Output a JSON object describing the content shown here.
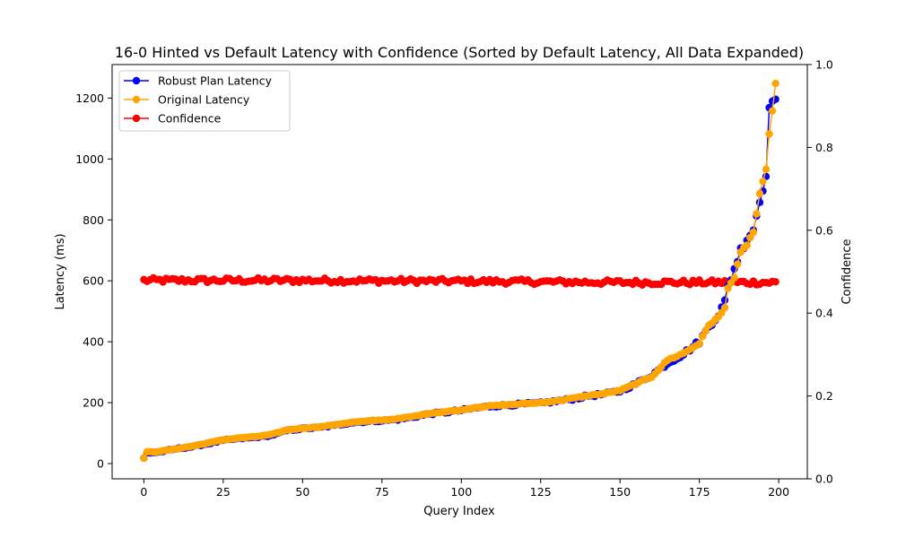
{
  "chart_data": {
    "type": "line",
    "title": "16-0 Hinted vs Default Latency with Confidence (Sorted by Default Latency, All Data Expanded)",
    "xlabel": "Query Index",
    "ylabel": "Latency (ms)",
    "y2label": "Confidence",
    "xlim": [
      -10,
      209
    ],
    "ylim": [
      -50,
      1310
    ],
    "y2lim": [
      0.0,
      1.0
    ],
    "x_ticks": [
      0,
      25,
      50,
      75,
      100,
      125,
      150,
      175,
      200
    ],
    "y_ticks": [
      0,
      200,
      400,
      600,
      800,
      1000,
      1200
    ],
    "y2_ticks": [
      "0.0",
      "0.2",
      "0.4",
      "0.6",
      "0.8",
      "1.0"
    ],
    "grid": false,
    "legend_position": "top-left",
    "count": 200,
    "series": [
      {
        "name": "Robust Plan Latency",
        "axis": "left",
        "color": "#0000ff",
        "knots": [
          [
            0,
            18
          ],
          [
            1,
            35
          ],
          [
            5,
            38
          ],
          [
            10,
            48
          ],
          [
            15,
            55
          ],
          [
            20,
            65
          ],
          [
            25,
            76
          ],
          [
            30,
            82
          ],
          [
            35,
            86
          ],
          [
            40,
            92
          ],
          [
            45,
            108
          ],
          [
            50,
            115
          ],
          [
            55,
            118
          ],
          [
            60,
            125
          ],
          [
            65,
            134
          ],
          [
            70,
            138
          ],
          [
            75,
            141
          ],
          [
            80,
            145
          ],
          [
            85,
            153
          ],
          [
            90,
            163
          ],
          [
            95,
            168
          ],
          [
            100,
            175
          ],
          [
            105,
            183
          ],
          [
            110,
            189
          ],
          [
            115,
            192
          ],
          [
            120,
            196
          ],
          [
            125,
            198
          ],
          [
            130,
            205
          ],
          [
            135,
            212
          ],
          [
            140,
            222
          ],
          [
            145,
            228
          ],
          [
            150,
            238
          ],
          [
            155,
            262
          ],
          [
            160,
            290
          ],
          [
            165,
            330
          ],
          [
            170,
            360
          ],
          [
            175,
            400
          ],
          [
            178,
            450
          ],
          [
            181,
            490
          ],
          [
            183,
            530
          ],
          [
            184,
            580
          ],
          [
            186,
            640
          ],
          [
            188,
            700
          ],
          [
            190,
            740
          ],
          [
            192,
            770
          ],
          [
            194,
            860
          ],
          [
            196,
            960
          ],
          [
            197,
            1150
          ],
          [
            198,
            1210
          ],
          [
            199,
            1195
          ]
        ]
      },
      {
        "name": "Original Latency",
        "axis": "left",
        "color": "#ffa500",
        "knots": [
          [
            0,
            18
          ],
          [
            1,
            38
          ],
          [
            5,
            40
          ],
          [
            10,
            48
          ],
          [
            15,
            57
          ],
          [
            20,
            67
          ],
          [
            25,
            78
          ],
          [
            30,
            84
          ],
          [
            35,
            88
          ],
          [
            40,
            95
          ],
          [
            45,
            110
          ],
          [
            50,
            116
          ],
          [
            55,
            120
          ],
          [
            60,
            127
          ],
          [
            65,
            135
          ],
          [
            70,
            139
          ],
          [
            75,
            143
          ],
          [
            80,
            147
          ],
          [
            85,
            155
          ],
          [
            90,
            165
          ],
          [
            95,
            170
          ],
          [
            100,
            176
          ],
          [
            105,
            185
          ],
          [
            110,
            190
          ],
          [
            115,
            193
          ],
          [
            120,
            197
          ],
          [
            125,
            200
          ],
          [
            130,
            206
          ],
          [
            135,
            214
          ],
          [
            140,
            223
          ],
          [
            145,
            230
          ],
          [
            150,
            240
          ],
          [
            155,
            262
          ],
          [
            160,
            285
          ],
          [
            165,
            340
          ],
          [
            170,
            362
          ],
          [
            175,
            395
          ],
          [
            178,
            455
          ],
          [
            181,
            480
          ],
          [
            183,
            510
          ],
          [
            184,
            580
          ],
          [
            186,
            610
          ],
          [
            188,
            690
          ],
          [
            190,
            720
          ],
          [
            192,
            760
          ],
          [
            194,
            880
          ],
          [
            196,
            960
          ],
          [
            197,
            1090
          ],
          [
            198,
            1150
          ],
          [
            199,
            1255
          ]
        ]
      },
      {
        "name": "Confidence",
        "axis": "right",
        "color": "#ff0000",
        "knots": [
          [
            0,
            0.479
          ],
          [
            50,
            0.479
          ],
          [
            100,
            0.477
          ],
          [
            150,
            0.474
          ],
          [
            199,
            0.474
          ]
        ]
      }
    ]
  }
}
